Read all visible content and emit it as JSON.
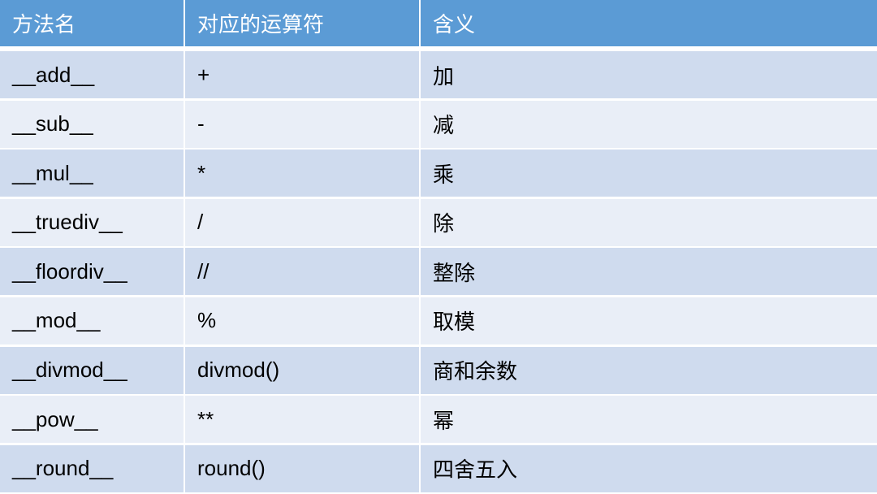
{
  "colors": {
    "header": "#5b9bd5",
    "row_dark": "#cfdbee",
    "row_light": "#e9eef7"
  },
  "headers": [
    "方法名",
    "对应的运算符",
    "含义"
  ],
  "rows": [
    [
      "__add__",
      "+",
      "加"
    ],
    [
      "__sub__",
      "-",
      "减"
    ],
    [
      "__mul__",
      "*",
      "乘"
    ],
    [
      "__truediv__",
      "/",
      "除"
    ],
    [
      "__floordiv__",
      "//",
      "整除"
    ],
    [
      "__mod__",
      "%",
      "取模"
    ],
    [
      "__divmod__",
      "divmod()",
      "商和余数"
    ],
    [
      "__pow__",
      "**",
      "幂"
    ],
    [
      "__round__",
      "round()",
      "四舍五入"
    ]
  ]
}
